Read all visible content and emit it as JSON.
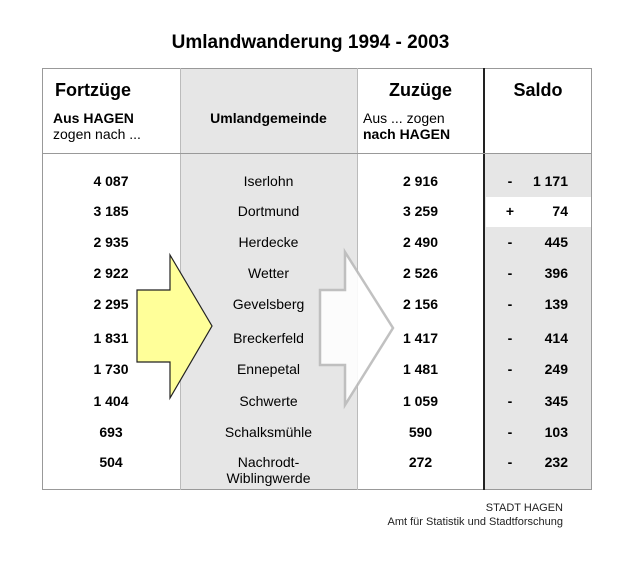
{
  "title": "Umlandwanderung 1994 - 2003",
  "header": {
    "fortzuege": "Fortzüge",
    "fortzuege_sub1": "Aus HAGEN",
    "fortzuege_sub2": "zogen nach ...",
    "gemeinde": "Umlandgemeinde",
    "zuzuege": "Zuzüge",
    "zuzuege_sub1": "Aus ... zogen",
    "zuzuege_sub2": "nach HAGEN",
    "saldo": "Saldo"
  },
  "rows": [
    {
      "fort": "4 087",
      "gemeinde": "Iserlohn",
      "zu": "2 916",
      "sign": "-",
      "saldo": "1 171"
    },
    {
      "fort": "3 185",
      "gemeinde": "Dortmund",
      "zu": "3 259",
      "sign": "+",
      "saldo": "74"
    },
    {
      "fort": "2 935",
      "gemeinde": "Herdecke",
      "zu": "2 490",
      "sign": "-",
      "saldo": "445"
    },
    {
      "fort": "2 922",
      "gemeinde": "Wetter",
      "zu": "2 526",
      "sign": "-",
      "saldo": "396"
    },
    {
      "fort": "2 295",
      "gemeinde": "Gevelsberg",
      "zu": "2 156",
      "sign": "-",
      "saldo": "139"
    },
    {
      "fort": "1 831",
      "gemeinde": "Breckerfeld",
      "zu": "1 417",
      "sign": "-",
      "saldo": "414"
    },
    {
      "fort": "1 730",
      "gemeinde": "Ennepetal",
      "zu": "1 481",
      "sign": "-",
      "saldo": "249"
    },
    {
      "fort": "1 404",
      "gemeinde": "Schwerte",
      "zu": "1 059",
      "sign": "-",
      "saldo": "345"
    },
    {
      "fort": "693",
      "gemeinde": "Schalksmühle",
      "zu": "590",
      "sign": "-",
      "saldo": "103"
    },
    {
      "fort": "504",
      "gemeinde": "Nachrodt-\nWiblingwerde",
      "zu": "272",
      "sign": "-",
      "saldo": "232"
    }
  ],
  "footer": {
    "line1": "STADT HAGEN",
    "line2": "Amt für Statistik und Stadtforschung"
  },
  "colors": {
    "gray_column": "#e6e6e6",
    "yellow_arrow": "#ffff99"
  }
}
